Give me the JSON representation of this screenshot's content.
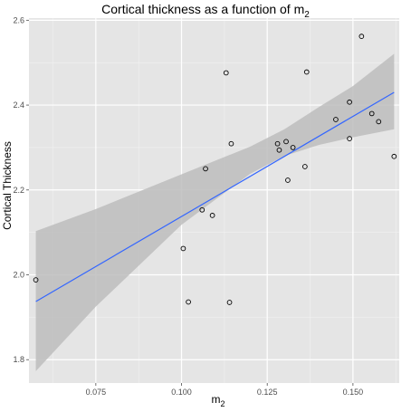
{
  "chart_data": {
    "type": "scatter",
    "title": {
      "text": "Cortical thickness as a function of m",
      "subscript": "2"
    },
    "xlabel": {
      "text": "m",
      "subscript": "2"
    },
    "ylabel": "Cortical Thickness",
    "xlim": [
      0.0555,
      0.1635
    ],
    "ylim": [
      1.745,
      2.605
    ],
    "x_ticks": [
      0.075,
      0.1,
      0.125,
      0.15
    ],
    "x_tick_labels": [
      "0.075",
      "0.100",
      "0.125",
      "0.150"
    ],
    "y_ticks": [
      1.8,
      2.0,
      2.2,
      2.4,
      2.6
    ],
    "y_tick_labels": [
      "1.8",
      "2.0",
      "2.2",
      "2.4",
      "2.6"
    ],
    "grid": true,
    "points": [
      {
        "x": 0.0575,
        "y": 1.988
      },
      {
        "x": 0.1005,
        "y": 2.062
      },
      {
        "x": 0.102,
        "y": 1.936
      },
      {
        "x": 0.106,
        "y": 2.153
      },
      {
        "x": 0.107,
        "y": 2.25
      },
      {
        "x": 0.109,
        "y": 2.14
      },
      {
        "x": 0.113,
        "y": 2.476
      },
      {
        "x": 0.114,
        "y": 1.935
      },
      {
        "x": 0.1145,
        "y": 2.309
      },
      {
        "x": 0.128,
        "y": 2.309
      },
      {
        "x": 0.1285,
        "y": 2.294
      },
      {
        "x": 0.1305,
        "y": 2.314
      },
      {
        "x": 0.131,
        "y": 2.223
      },
      {
        "x": 0.1325,
        "y": 2.3
      },
      {
        "x": 0.136,
        "y": 2.255
      },
      {
        "x": 0.1365,
        "y": 2.478
      },
      {
        "x": 0.145,
        "y": 2.366
      },
      {
        "x": 0.149,
        "y": 2.321
      },
      {
        "x": 0.149,
        "y": 2.407
      },
      {
        "x": 0.1525,
        "y": 2.562
      },
      {
        "x": 0.1555,
        "y": 2.38
      },
      {
        "x": 0.1575,
        "y": 2.361
      },
      {
        "x": 0.162,
        "y": 2.279
      }
    ],
    "fit": {
      "method": "linear",
      "x": [
        0.0575,
        0.162
      ],
      "y": [
        1.937,
        2.43
      ],
      "ci_x": [
        0.0575,
        0.075,
        0.1,
        0.12,
        0.13,
        0.14,
        0.15,
        0.162
      ],
      "ci_lower": [
        1.773,
        1.925,
        2.118,
        2.238,
        2.28,
        2.306,
        2.324,
        2.343
      ],
      "ci_upper": [
        2.103,
        2.155,
        2.237,
        2.302,
        2.343,
        2.395,
        2.445,
        2.521
      ]
    },
    "colors": {
      "panel_background": "#e5e5e5",
      "grid_major": "#ffffff",
      "grid_minor": "#f2f2f2",
      "ribbon": "#bdbdbd",
      "fit_line": "#3366ff",
      "point_stroke": "#000000"
    }
  }
}
